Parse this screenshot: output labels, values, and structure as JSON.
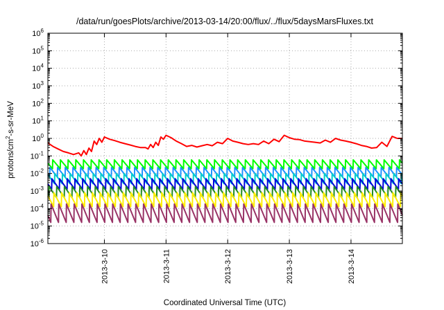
{
  "chart_data": {
    "type": "line",
    "title": "/data/run/goesPlots/archive/2013-03-14/20:00/flux/../flux/5daysMarsFluxes.txt",
    "xlabel": "Coordinated Universal Time (UTC)",
    "ylabel": "protons/cm²-s-sr-MeV",
    "ylabel_parts": {
      "pre": "protons/cm",
      "sup": "2",
      "post": "-s-sr-MeV"
    },
    "y_scale": "log",
    "ylim": [
      1e-06,
      1000000.0
    ],
    "y_ticks": [
      {
        "base": "10",
        "exp": "-6",
        "value": 1e-06
      },
      {
        "base": "10",
        "exp": "-5",
        "value": 1e-05
      },
      {
        "base": "10",
        "exp": "-4",
        "value": 0.0001
      },
      {
        "base": "10",
        "exp": "-3",
        "value": 0.001
      },
      {
        "base": "10",
        "exp": "-2",
        "value": 0.01
      },
      {
        "base": "10",
        "exp": "-1",
        "value": 0.1
      },
      {
        "base": "10",
        "exp": "0",
        "value": 1
      },
      {
        "base": "10",
        "exp": "1",
        "value": 10
      },
      {
        "base": "10",
        "exp": "2",
        "value": 100
      },
      {
        "base": "10",
        "exp": "3",
        "value": 1000
      },
      {
        "base": "10",
        "exp": "4",
        "value": 10000
      },
      {
        "base": "10",
        "exp": "5",
        "value": 100000
      },
      {
        "base": "10",
        "exp": "6",
        "value": 1000000
      }
    ],
    "xlim": [
      "2013-03-09 02:00",
      "2013-03-14 20:00"
    ],
    "x_ticks": [
      "2013-3-10",
      "2013-3-11",
      "2013-3-12",
      "2013-3-13",
      "2013-3-14"
    ],
    "x_tick_dates": [
      "2013-03-10 00:00",
      "2013-03-11 00:00",
      "2013-03-12 00:00",
      "2013-03-13 00:00",
      "2013-03-14 00:00"
    ],
    "grid": true,
    "legend": "none",
    "sawtooth_period_hours": 3,
    "series": [
      {
        "color": "#ff0000",
        "points": [
          [
            "2013-03-09 02:00",
            0.55
          ],
          [
            "2013-03-09 04:00",
            0.35
          ],
          [
            "2013-03-09 06:00",
            0.25
          ],
          [
            "2013-03-09 08:00",
            0.18
          ],
          [
            "2013-03-09 10:00",
            0.15
          ],
          [
            "2013-03-09 12:00",
            0.12
          ],
          [
            "2013-03-09 14:00",
            0.15
          ],
          [
            "2013-03-09 15:00",
            0.1
          ],
          [
            "2013-03-09 16:00",
            0.2
          ],
          [
            "2013-03-09 17:00",
            0.12
          ],
          [
            "2013-03-09 18:00",
            0.28
          ],
          [
            "2013-03-09 19:00",
            0.18
          ],
          [
            "2013-03-09 20:00",
            0.7
          ],
          [
            "2013-03-09 21:00",
            0.45
          ],
          [
            "2013-03-09 22:00",
            1.0
          ],
          [
            "2013-03-09 23:00",
            0.6
          ],
          [
            "2013-03-10 00:00",
            1.2
          ],
          [
            "2013-03-10 02:00",
            0.9
          ],
          [
            "2013-03-10 04:00",
            0.75
          ],
          [
            "2013-03-10 06:00",
            0.6
          ],
          [
            "2013-03-10 08:00",
            0.5
          ],
          [
            "2013-03-10 10:00",
            0.42
          ],
          [
            "2013-03-10 12:00",
            0.35
          ],
          [
            "2013-03-10 14:00",
            0.3
          ],
          [
            "2013-03-10 16:00",
            0.3
          ],
          [
            "2013-03-10 17:00",
            0.25
          ],
          [
            "2013-03-10 18:00",
            0.45
          ],
          [
            "2013-03-10 19:00",
            0.3
          ],
          [
            "2013-03-10 20:00",
            0.6
          ],
          [
            "2013-03-10 21:00",
            0.4
          ],
          [
            "2013-03-10 22:00",
            1.2
          ],
          [
            "2013-03-10 23:00",
            0.9
          ],
          [
            "2013-03-11 00:00",
            1.5
          ],
          [
            "2013-03-11 02:00",
            1.1
          ],
          [
            "2013-03-11 04:00",
            0.7
          ],
          [
            "2013-03-11 06:00",
            0.5
          ],
          [
            "2013-03-11 08:00",
            0.35
          ],
          [
            "2013-03-11 10:00",
            0.4
          ],
          [
            "2013-03-11 12:00",
            0.32
          ],
          [
            "2013-03-11 14:00",
            0.38
          ],
          [
            "2013-03-11 16:00",
            0.45
          ],
          [
            "2013-03-11 18:00",
            0.38
          ],
          [
            "2013-03-11 20:00",
            0.6
          ],
          [
            "2013-03-11 22:00",
            0.5
          ],
          [
            "2013-03-12 00:00",
            1.0
          ],
          [
            "2013-03-12 02:00",
            0.7
          ],
          [
            "2013-03-12 04:00",
            0.6
          ],
          [
            "2013-03-12 06:00",
            0.5
          ],
          [
            "2013-03-12 08:00",
            0.45
          ],
          [
            "2013-03-12 10:00",
            0.5
          ],
          [
            "2013-03-12 12:00",
            0.45
          ],
          [
            "2013-03-12 14:00",
            0.7
          ],
          [
            "2013-03-12 16:00",
            0.5
          ],
          [
            "2013-03-12 18:00",
            0.9
          ],
          [
            "2013-03-12 20:00",
            0.65
          ],
          [
            "2013-03-12 22:00",
            1.5
          ],
          [
            "2013-03-13 00:00",
            1.1
          ],
          [
            "2013-03-13 02:00",
            0.9
          ],
          [
            "2013-03-13 04:00",
            0.85
          ],
          [
            "2013-03-13 06:00",
            0.7
          ],
          [
            "2013-03-13 08:00",
            0.65
          ],
          [
            "2013-03-13 10:00",
            0.6
          ],
          [
            "2013-03-13 12:00",
            0.55
          ],
          [
            "2013-03-13 14:00",
            0.8
          ],
          [
            "2013-03-13 16:00",
            0.6
          ],
          [
            "2013-03-13 18:00",
            1.0
          ],
          [
            "2013-03-13 20:00",
            0.8
          ],
          [
            "2013-03-13 22:00",
            0.7
          ],
          [
            "2013-03-14 00:00",
            0.6
          ],
          [
            "2013-03-14 02:00",
            0.5
          ],
          [
            "2013-03-14 04:00",
            0.4
          ],
          [
            "2013-03-14 06:00",
            0.35
          ],
          [
            "2013-03-14 08:00",
            0.28
          ],
          [
            "2013-03-14 10:00",
            0.3
          ],
          [
            "2013-03-14 12:00",
            0.6
          ],
          [
            "2013-03-14 14:00",
            0.35
          ],
          [
            "2013-03-14 16:00",
            1.3
          ],
          [
            "2013-03-14 18:00",
            1.0
          ],
          [
            "2013-03-14 20:00",
            1.0
          ]
        ]
      },
      {
        "color": "#00ff00",
        "sawtooth_peak": 0.06,
        "sawtooth_trough": 0.018
      },
      {
        "color": "#1e90ff",
        "sawtooth_peak": 0.022,
        "sawtooth_trough": 0.006
      },
      {
        "color": "#00cccc",
        "sawtooth_peak": 0.01,
        "sawtooth_trough": 0.0025
      },
      {
        "color": "#0000dd",
        "sawtooth_peak": 0.005,
        "sawtooth_trough": 0.0012
      },
      {
        "color": "#228b22",
        "sawtooth_peak": 0.0018,
        "sawtooth_trough": 0.0004
      },
      {
        "color": "#ffee00",
        "sawtooth_peak": 0.0008,
        "sawtooth_trough": 0.00012
      },
      {
        "color": "#993366",
        "sawtooth_peak": 0.00018,
        "sawtooth_trough": 1.5e-05
      }
    ]
  }
}
